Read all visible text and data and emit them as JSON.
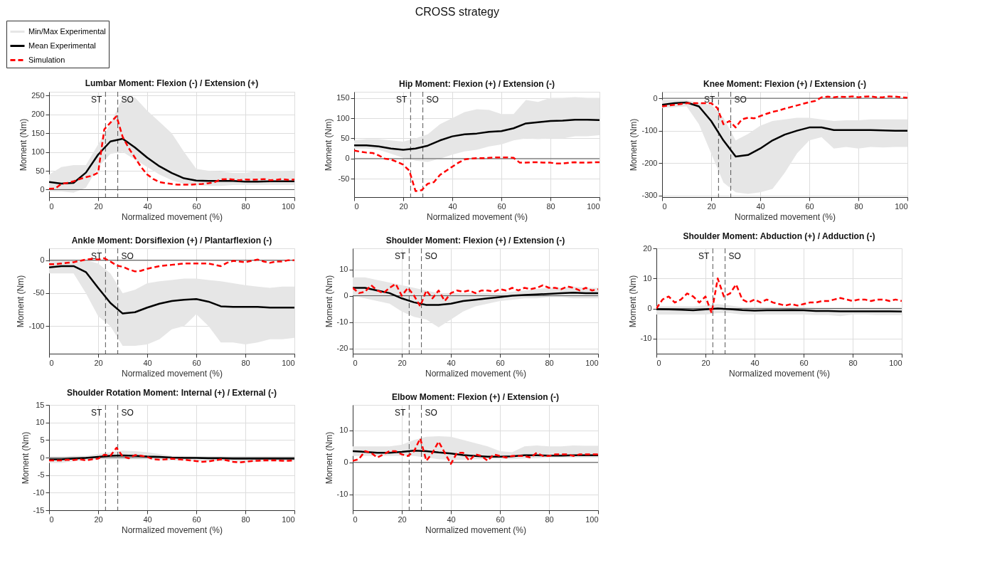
{
  "chart_data": [
    {
      "type": "line",
      "title": "Lumbar Moment: Flexion (-) / Extension (+)",
      "xlabel": "Normalized movement (%)",
      "ylabel": "Moment (Nm)",
      "annotations": [
        "CROSS strategy",
        "Min/Max Experimental"
      ],
      "legend": "top left",
      "grid": true,
      "xlim": [
        0,
        100
      ],
      "xticks": [
        0,
        20,
        40,
        60,
        80,
        100
      ],
      "ylim": [
        -20,
        260
      ],
      "yticks": [
        0,
        50,
        100,
        150,
        200,
        250
      ],
      "x": [
        0,
        5,
        10,
        15,
        20,
        25,
        30,
        35,
        40,
        45,
        50,
        55,
        60,
        65,
        70,
        75,
        80,
        85,
        90,
        95,
        100
      ],
      "series": [
        {
          "name": "Mean Experimental",
          "color": "#000000",
          "line_style": "solid",
          "values": [
            20,
            16,
            18,
            45,
            93,
            128,
            135,
            112,
            85,
            62,
            44,
            30,
            24,
            23,
            23,
            23,
            21,
            21,
            22,
            22,
            22
          ],
          "lower": [
            -5,
            -5,
            -8,
            5,
            60,
            95,
            100,
            80,
            60,
            40,
            25,
            15,
            12,
            10,
            10,
            12,
            12,
            12,
            12,
            12,
            12
          ],
          "upper": [
            40,
            60,
            65,
            65,
            120,
            175,
            245,
            245,
            210,
            180,
            150,
            100,
            55,
            50,
            48,
            45,
            45,
            50,
            50,
            50,
            48
          ]
        },
        {
          "name": "Simulation",
          "color": "#ff0000",
          "line_style": "dashed",
          "x": [
            0,
            2.5,
            5,
            7.5,
            10,
            12.5,
            15,
            17.5,
            20,
            22.5,
            25,
            27.5,
            30,
            32.5,
            35,
            37.5,
            40,
            42.5,
            45,
            47.5,
            50,
            52.5,
            55,
            57.5,
            60,
            62.5,
            65,
            67.5,
            70,
            72.5,
            75,
            77.5,
            80,
            82.5,
            85,
            87.5,
            90,
            92.5,
            95,
            97.5,
            100
          ],
          "values": [
            2,
            3,
            15,
            18,
            22,
            28,
            33,
            37,
            45,
            160,
            178,
            195,
            140,
            110,
            85,
            60,
            40,
            28,
            20,
            17,
            15,
            13,
            13,
            13,
            14,
            15,
            17,
            20,
            27,
            28,
            27,
            25,
            27,
            26,
            27,
            28,
            25,
            26,
            28,
            26,
            27
          ]
        }
      ],
      "ref_lines": [
        {
          "axis": "x",
          "value": 23,
          "label": "ST",
          "line_style": "dashed",
          "color": "#555555"
        },
        {
          "axis": "x",
          "value": 28,
          "label": "SO",
          "line_style": "dashed",
          "color": "#555555"
        },
        {
          "axis": "y",
          "value": 0,
          "color": "#555555",
          "line_style": "solid"
        }
      ]
    },
    {
      "type": "line",
      "title": "Hip Moment: Flexion (+) / Extension (-)",
      "xlabel": "Normalized movement (%)",
      "ylabel": "Moment (Nm)",
      "grid": true,
      "xlim": [
        0,
        100
      ],
      "xticks": [
        0,
        20,
        40,
        60,
        80,
        100
      ],
      "ylim": [
        -95,
        165
      ],
      "yticks": [
        -50,
        0,
        50,
        100,
        150
      ],
      "x": [
        0,
        5,
        10,
        15,
        20,
        25,
        30,
        35,
        40,
        45,
        50,
        55,
        60,
        65,
        70,
        75,
        80,
        85,
        90,
        95,
        100
      ],
      "series": [
        {
          "color": "#000000",
          "line_style": "solid",
          "values": [
            33,
            33,
            30,
            25,
            22,
            25,
            32,
            45,
            55,
            60,
            62,
            66,
            68,
            75,
            87,
            90,
            93,
            94,
            96,
            96,
            95
          ],
          "lower": [
            25,
            25,
            22,
            12,
            2,
            -5,
            -8,
            0,
            10,
            18,
            22,
            30,
            35,
            45,
            50,
            48,
            50,
            50,
            55,
            55,
            58
          ],
          "upper": [
            45,
            48,
            48,
            45,
            42,
            50,
            60,
            85,
            100,
            115,
            122,
            120,
            110,
            110,
            145,
            140,
            150,
            150,
            152,
            150,
            150
          ]
        },
        {
          "color": "#ff0000",
          "line_style": "dashed",
          "x": [
            0,
            2.5,
            5,
            7.5,
            10,
            12.5,
            15,
            17.5,
            20,
            22.5,
            25,
            27.5,
            30,
            32.5,
            35,
            37.5,
            40,
            42.5,
            45,
            47.5,
            50,
            52.5,
            55,
            57.5,
            60,
            62.5,
            65,
            67.5,
            70,
            72.5,
            75,
            77.5,
            80,
            82.5,
            85,
            87.5,
            90,
            92.5,
            95,
            97.5,
            100
          ],
          "values": [
            20,
            17,
            15,
            14,
            8,
            0,
            -2,
            -8,
            -15,
            -30,
            -80,
            -78,
            -62,
            -58,
            -40,
            -30,
            -20,
            -10,
            -2,
            0,
            1,
            1,
            2,
            3,
            3,
            3,
            2,
            -10,
            -10,
            -9,
            -9,
            -10,
            -10,
            -12,
            -12,
            -10,
            -9,
            -10,
            -10,
            -9,
            -9
          ]
        }
      ],
      "ref_lines": [
        {
          "axis": "x",
          "value": 23,
          "label": "ST",
          "line_style": "dashed",
          "color": "#555555"
        },
        {
          "axis": "x",
          "value": 28,
          "label": "SO",
          "line_style": "dashed",
          "color": "#555555"
        },
        {
          "axis": "y",
          "value": 0,
          "color": "#555555",
          "line_style": "solid"
        }
      ]
    },
    {
      "type": "line",
      "title": "Knee Moment: Flexion (+) / Extension (-)",
      "xlabel": "Normalized movement (%)",
      "ylabel": "Moment (Nm)",
      "grid": true,
      "xlim": [
        0,
        100
      ],
      "xticks": [
        0,
        20,
        40,
        60,
        80,
        100
      ],
      "ylim": [
        -305,
        20
      ],
      "yticks": [
        -300,
        -200,
        -100,
        0
      ],
      "x": [
        0,
        5,
        10,
        15,
        20,
        25,
        30,
        35,
        40,
        45,
        50,
        55,
        60,
        65,
        70,
        75,
        80,
        85,
        90,
        95,
        100
      ],
      "series": [
        {
          "color": "#000000",
          "line_style": "solid",
          "values": [
            -20,
            -15,
            -13,
            -25,
            -70,
            -130,
            -180,
            -175,
            -155,
            -130,
            -112,
            -100,
            -90,
            -90,
            -98,
            -98,
            -98,
            -98,
            -99,
            -100,
            -100
          ],
          "lower": [
            -30,
            -28,
            -25,
            -80,
            -170,
            -260,
            -290,
            -295,
            -290,
            -280,
            -230,
            -170,
            -130,
            -120,
            -155,
            -150,
            -155,
            -150,
            -152,
            -150,
            -150
          ],
          "upper": [
            -5,
            -5,
            -5,
            -15,
            -20,
            -60,
            -130,
            -110,
            -85,
            -70,
            -65,
            -60,
            -60,
            -65,
            -70,
            -68,
            -68,
            -65,
            -65,
            -65,
            -65
          ]
        },
        {
          "color": "#ff0000",
          "line_style": "dashed",
          "x": [
            0,
            2.5,
            5,
            7.5,
            10,
            12.5,
            15,
            17.5,
            20,
            22.5,
            25,
            27.5,
            30,
            32.5,
            35,
            37.5,
            40,
            42.5,
            45,
            47.5,
            50,
            52.5,
            55,
            57.5,
            60,
            62.5,
            65,
            67.5,
            70,
            72.5,
            75,
            77.5,
            80,
            82.5,
            85,
            87.5,
            90,
            92.5,
            95,
            97.5,
            100
          ],
          "values": [
            -25,
            -22,
            -20,
            -18,
            -15,
            -15,
            -15,
            -15,
            -15,
            -30,
            -80,
            -70,
            -90,
            -65,
            -60,
            -62,
            -55,
            -48,
            -42,
            -38,
            -32,
            -27,
            -22,
            -17,
            -12,
            -8,
            3,
            5,
            3,
            5,
            4,
            6,
            3,
            5,
            6,
            3,
            3,
            6,
            5,
            3,
            2
          ]
        }
      ],
      "ref_lines": [
        {
          "axis": "x",
          "value": 23,
          "label": "ST",
          "line_style": "dashed",
          "color": "#555555"
        },
        {
          "axis": "x",
          "value": 28,
          "label": "SO",
          "line_style": "dashed",
          "color": "#555555"
        },
        {
          "axis": "y",
          "value": 0,
          "color": "#555555",
          "line_style": "solid"
        }
      ]
    },
    {
      "type": "line",
      "title": "Ankle Moment: Dorsiflexion (+) / Plantarflexion (-)",
      "xlabel": "Normalized movement (%)",
      "ylabel": "Moment (Nm)",
      "grid": true,
      "xlim": [
        0,
        100
      ],
      "xticks": [
        0,
        20,
        40,
        60,
        80,
        100
      ],
      "ylim": [
        -142,
        18
      ],
      "yticks": [
        -100,
        -50,
        0
      ],
      "x": [
        0,
        5,
        10,
        15,
        20,
        25,
        30,
        35,
        40,
        45,
        50,
        55,
        60,
        65,
        70,
        75,
        80,
        85,
        90,
        95,
        100
      ],
      "series": [
        {
          "color": "#000000",
          "line_style": "solid",
          "values": [
            -11,
            -9,
            -9,
            -18,
            -42,
            -65,
            -81,
            -79,
            -72,
            -66,
            -62,
            -60,
            -59,
            -63,
            -70,
            -71,
            -71,
            -71,
            -72,
            -72,
            -72
          ],
          "lower": [
            -20,
            -20,
            -20,
            -50,
            -85,
            -100,
            -130,
            -130,
            -128,
            -120,
            -105,
            -100,
            -82,
            -100,
            -125,
            -125,
            -128,
            -125,
            -120,
            -120,
            -118
          ],
          "upper": [
            -2,
            0,
            0,
            0,
            -5,
            -20,
            -50,
            -45,
            -35,
            -32,
            -30,
            -28,
            -28,
            -30,
            -32,
            -35,
            -38,
            -40,
            -42,
            -40,
            -40
          ]
        },
        {
          "color": "#ff0000",
          "line_style": "dashed",
          "x": [
            0,
            2.5,
            5,
            7.5,
            10,
            12.5,
            15,
            17.5,
            20,
            22.5,
            25,
            27.5,
            30,
            32.5,
            35,
            37.5,
            40,
            42.5,
            45,
            47.5,
            50,
            52.5,
            55,
            57.5,
            60,
            62.5,
            65,
            67.5,
            70,
            72.5,
            75,
            77.5,
            80,
            82.5,
            85,
            87.5,
            90,
            92.5,
            95,
            97.5,
            100
          ],
          "values": [
            -6,
            -6,
            -5,
            -4,
            -3,
            -1,
            1,
            2,
            1,
            3,
            -2,
            -8,
            -10,
            -14,
            -17,
            -16,
            -13,
            -11,
            -9,
            -8,
            -7,
            -6,
            -5,
            -5,
            -5,
            -5,
            -5,
            -7,
            -9,
            -4,
            -1,
            -2,
            -3,
            -1,
            1,
            -2,
            -4,
            -2,
            -2,
            0,
            0
          ]
        }
      ],
      "ref_lines": [
        {
          "axis": "x",
          "value": 23,
          "label": "ST",
          "line_style": "dashed",
          "color": "#555555"
        },
        {
          "axis": "x",
          "value": 28,
          "label": "SO",
          "line_style": "dashed",
          "color": "#555555"
        },
        {
          "axis": "y",
          "value": 0,
          "color": "#555555",
          "line_style": "solid"
        }
      ]
    },
    {
      "type": "line",
      "title": "Shoulder Moment: Flexion (+) / Extension (-)",
      "xlabel": "Normalized movement (%)",
      "ylabel": "Moment (Nm)",
      "grid": true,
      "xlim": [
        0,
        100
      ],
      "xticks": [
        0,
        20,
        40,
        60,
        80,
        100
      ],
      "ylim": [
        -22,
        18
      ],
      "yticks": [
        -20,
        -10,
        0,
        10
      ],
      "x": [
        0,
        5,
        10,
        15,
        20,
        25,
        30,
        35,
        40,
        45,
        50,
        55,
        60,
        65,
        70,
        75,
        80,
        85,
        90,
        95,
        100
      ],
      "series": [
        {
          "color": "#000000",
          "line_style": "solid",
          "values": [
            3,
            3,
            2,
            1,
            -1,
            -2.5,
            -3.5,
            -3.5,
            -3,
            -2,
            -1.5,
            -1,
            -0.5,
            0,
            0.3,
            0.5,
            0.7,
            1,
            1.2,
            1,
            1
          ],
          "lower": [
            0,
            -1,
            -2,
            -3,
            -6,
            -8,
            -9,
            -12,
            -9,
            -6,
            -4,
            -3,
            -2,
            -1.5,
            -1,
            -1,
            -0.5,
            -0.5,
            -1,
            -1,
            -1
          ],
          "upper": [
            7,
            7,
            6,
            5,
            4,
            3,
            2,
            1,
            1,
            1,
            1,
            1,
            1,
            1.5,
            2,
            2.5,
            3,
            3,
            3.5,
            3,
            3
          ]
        },
        {
          "color": "#ff0000",
          "line_style": "dashed",
          "x": [
            0,
            2.5,
            5,
            7.5,
            10,
            12.5,
            15,
            17.5,
            20,
            22.5,
            25,
            27.5,
            30,
            32.5,
            35,
            37.5,
            40,
            42.5,
            45,
            47.5,
            50,
            52.5,
            55,
            57.5,
            60,
            62.5,
            65,
            67.5,
            70,
            72.5,
            75,
            77.5,
            80,
            82.5,
            85,
            87.5,
            90,
            92.5,
            95,
            97.5,
            100
          ],
          "values": [
            3,
            1,
            1.5,
            4,
            2,
            1,
            3,
            4.5,
            0,
            3,
            0,
            -4,
            2,
            -1,
            2,
            -2,
            1,
            2,
            1.5,
            2,
            1,
            2,
            2,
            1.5,
            2.5,
            2,
            3,
            2,
            3,
            2.5,
            3,
            4,
            3,
            3,
            2.5,
            3.5,
            3,
            2,
            3,
            2,
            2.5
          ]
        }
      ],
      "ref_lines": [
        {
          "axis": "x",
          "value": 23,
          "label": "ST",
          "line_style": "dashed",
          "color": "#555555"
        },
        {
          "axis": "x",
          "value": 28,
          "label": "SO",
          "line_style": "dashed",
          "color": "#555555"
        },
        {
          "axis": "y",
          "value": 0,
          "color": "#555555",
          "line_style": "solid"
        }
      ]
    },
    {
      "type": "line",
      "title": "Shoulder Moment: Abduction (+) / Adduction (-)",
      "xlabel": "Normalized movement (%)",
      "ylabel": "Moment (Nm)",
      "grid": true,
      "xlim": [
        0,
        100
      ],
      "xticks": [
        0,
        20,
        40,
        60,
        80,
        100
      ],
      "ylim": [
        -15,
        20
      ],
      "yticks": [
        -10,
        0,
        10,
        20
      ],
      "x": [
        0,
        5,
        10,
        15,
        20,
        25,
        30,
        35,
        40,
        45,
        50,
        55,
        60,
        65,
        70,
        75,
        80,
        85,
        90,
        95,
        100
      ],
      "series": [
        {
          "color": "#000000",
          "line_style": "solid",
          "values": [
            -0.2,
            -0.3,
            -0.4,
            -0.6,
            -0.3,
            0,
            -0.2,
            -0.5,
            -0.7,
            -0.6,
            -0.6,
            -0.5,
            -0.6,
            -0.8,
            -0.8,
            -0.9,
            -0.9,
            -0.9,
            -0.9,
            -0.9,
            -1
          ],
          "lower": [
            -2,
            -2,
            -2,
            -2,
            -2,
            -1.5,
            -1.5,
            -2,
            -2,
            -2,
            -2,
            -2,
            -2,
            -2.2,
            -2.2,
            -2.5,
            -2,
            -2,
            -2.2,
            -2.2,
            -2.2
          ],
          "upper": [
            0.8,
            0.8,
            0.8,
            0.7,
            1,
            1.5,
            1,
            0.5,
            0.5,
            0.5,
            0.5,
            0.5,
            0.5,
            0.3,
            0.3,
            0.3,
            0.3,
            0.3,
            0.3,
            0.3,
            0.3
          ]
        },
        {
          "color": "#ff0000",
          "line_style": "dashed",
          "x": [
            0,
            2.5,
            5,
            7.5,
            10,
            12.5,
            15,
            17.5,
            20,
            22.5,
            25,
            27.5,
            30,
            32.5,
            35,
            37.5,
            40,
            42.5,
            45,
            47.5,
            50,
            52.5,
            55,
            57.5,
            60,
            62.5,
            65,
            67.5,
            70,
            72.5,
            75,
            77.5,
            80,
            82.5,
            85,
            87.5,
            90,
            92.5,
            95,
            97.5,
            100
          ],
          "values": [
            0,
            3,
            4,
            2,
            3,
            5,
            4,
            2,
            4,
            -1.5,
            10,
            4,
            5,
            8,
            3,
            2,
            3,
            2,
            3,
            2,
            1.5,
            1,
            1.5,
            1,
            1.5,
            2,
            2,
            2.5,
            2.5,
            3,
            3.5,
            3,
            2.5,
            3,
            3,
            2.5,
            3,
            3,
            2.5,
            3,
            2.5
          ]
        }
      ],
      "ref_lines": [
        {
          "axis": "x",
          "value": 23,
          "label": "ST",
          "line_style": "dashed",
          "color": "#555555"
        },
        {
          "axis": "x",
          "value": 28,
          "label": "SO",
          "line_style": "dashed",
          "color": "#555555"
        },
        {
          "axis": "y",
          "value": 0,
          "color": "#555555",
          "line_style": "solid"
        }
      ]
    },
    {
      "type": "line",
      "title": "Shoulder Rotation Moment: Internal (+) / External (-)",
      "xlabel": "Normalized movement (%)",
      "ylabel": "Moment (Nm)",
      "grid": true,
      "xlim": [
        0,
        100
      ],
      "xticks": [
        0,
        20,
        40,
        60,
        80,
        100
      ],
      "ylim": [
        -15,
        15
      ],
      "yticks": [
        -15,
        -10,
        -5,
        0,
        5,
        10,
        15
      ],
      "x": [
        0,
        5,
        10,
        15,
        20,
        25,
        30,
        35,
        40,
        45,
        50,
        55,
        60,
        65,
        70,
        75,
        80,
        85,
        90,
        95,
        100
      ],
      "series": [
        {
          "color": "#000000",
          "line_style": "solid",
          "values": [
            -0.5,
            -0.5,
            -0.3,
            -0.1,
            0.2,
            0.5,
            0.6,
            0.5,
            0.3,
            0.2,
            0,
            -0.1,
            -0.1,
            -0.2,
            -0.2,
            -0.3,
            -0.3,
            -0.3,
            -0.3,
            -0.3,
            -0.3
          ],
          "lower": [
            -1.5,
            -1.5,
            -1,
            -0.8,
            -0.5,
            -0.5,
            -0.5,
            -0.5,
            -0.5,
            -0.7,
            -0.8,
            -0.8,
            -1,
            -1,
            -1,
            -1,
            -1.2,
            -1.2,
            -1,
            -1,
            -1
          ],
          "upper": [
            0,
            0,
            0.5,
            0.5,
            1,
            1.5,
            2,
            1.8,
            1.5,
            1,
            0.5,
            0.5,
            0.3,
            0.3,
            0.3,
            0.3,
            0.3,
            0.3,
            0.3,
            0.3,
            0.3
          ]
        },
        {
          "color": "#ff0000",
          "line_style": "dashed",
          "x": [
            0,
            2.5,
            5,
            7.5,
            10,
            12.5,
            15,
            17.5,
            20,
            22.5,
            25,
            27.5,
            30,
            32.5,
            35,
            37.5,
            40,
            42.5,
            45,
            47.5,
            50,
            52.5,
            55,
            57.5,
            60,
            62.5,
            65,
            67.5,
            70,
            72.5,
            75,
            77.5,
            80,
            82.5,
            85,
            87.5,
            90,
            92.5,
            95,
            97.5,
            100
          ],
          "values": [
            -0.8,
            -0.8,
            -0.8,
            -0.6,
            -0.7,
            -0.5,
            -0.8,
            -0.5,
            -0.3,
            0.8,
            0.5,
            2.8,
            0.3,
            -0.2,
            0.7,
            0.5,
            0.2,
            -0.5,
            -0.6,
            -0.5,
            -0.3,
            -0.5,
            -0.6,
            -0.8,
            -1,
            -1.2,
            -1.1,
            -0.8,
            -0.5,
            -0.8,
            -1.2,
            -1.4,
            -1.2,
            -1,
            -0.9,
            -0.8,
            -0.8,
            -0.8,
            -0.9,
            -0.9,
            -0.8
          ]
        }
      ],
      "ref_lines": [
        {
          "axis": "x",
          "value": 23,
          "label": "ST",
          "line_style": "dashed",
          "color": "#555555"
        },
        {
          "axis": "x",
          "value": 28,
          "label": "SO",
          "line_style": "dashed",
          "color": "#555555"
        },
        {
          "axis": "y",
          "value": 0,
          "color": "#555555",
          "line_style": "solid"
        }
      ]
    },
    {
      "type": "line",
      "title": "Elbow Moment: Flexion (+) / Extension (-)",
      "xlabel": "Normalized movement (%)",
      "ylabel": "Moment (Nm)",
      "grid": true,
      "xlim": [
        0,
        100
      ],
      "xticks": [
        0,
        20,
        40,
        60,
        80,
        100
      ],
      "ylim": [
        -15,
        18
      ],
      "yticks": [
        -10,
        0,
        10
      ],
      "x": [
        0,
        5,
        10,
        15,
        20,
        25,
        30,
        35,
        40,
        45,
        50,
        55,
        60,
        65,
        70,
        75,
        80,
        85,
        90,
        95,
        100
      ],
      "series": [
        {
          "color": "#000000",
          "line_style": "solid",
          "values": [
            3.5,
            3.3,
            3,
            3,
            3.3,
            3.7,
            3.5,
            3.1,
            2.8,
            2.3,
            2,
            1.8,
            1.8,
            1.9,
            2.2,
            2.2,
            2.1,
            2.1,
            2.2,
            2.2,
            2.2
          ],
          "lower": [
            2,
            2,
            2,
            2,
            2,
            2,
            1.5,
            1,
            0.8,
            0.8,
            1,
            1,
            1,
            1,
            1.2,
            1.3,
            1.5,
            1.5,
            1.5,
            1.5,
            1.5
          ],
          "upper": [
            5,
            5,
            5,
            5,
            5.5,
            7,
            8,
            8.2,
            8,
            7,
            6,
            5,
            3.5,
            3.2,
            5,
            5.3,
            5,
            5,
            5.3,
            5.2,
            5.2
          ]
        },
        {
          "color": "#ff0000",
          "line_style": "dashed",
          "x": [
            0,
            2.5,
            5,
            7.5,
            10,
            12.5,
            15,
            17.5,
            20,
            22.5,
            25,
            27.5,
            30,
            32.5,
            35,
            37.5,
            40,
            42.5,
            45,
            47.5,
            50,
            52.5,
            55,
            57.5,
            60,
            62.5,
            65,
            67.5,
            70,
            72.5,
            75,
            77.5,
            80,
            82.5,
            85,
            87.5,
            90,
            92.5,
            95,
            97.5,
            100
          ],
          "values": [
            0.5,
            1,
            3.5,
            3,
            1.5,
            2.5,
            3.5,
            3.5,
            2.5,
            2,
            3.5,
            7.5,
            0.5,
            3,
            6.5,
            3,
            -0.5,
            3,
            3,
            0.5,
            2.5,
            2,
            0.5,
            2.5,
            2,
            1.5,
            2,
            2,
            2,
            1.5,
            3,
            2,
            2,
            2.5,
            2.5,
            2.5,
            2,
            2.5,
            2.5,
            2.5,
            2.5
          ]
        }
      ],
      "ref_lines": [
        {
          "axis": "x",
          "value": 23,
          "label": "ST",
          "line_style": "dashed",
          "color": "#555555"
        },
        {
          "axis": "x",
          "value": 28,
          "label": "SO",
          "line_style": "dashed",
          "color": "#555555"
        },
        {
          "axis": "y",
          "value": 0,
          "color": "#555555",
          "line_style": "solid"
        }
      ]
    }
  ]
}
